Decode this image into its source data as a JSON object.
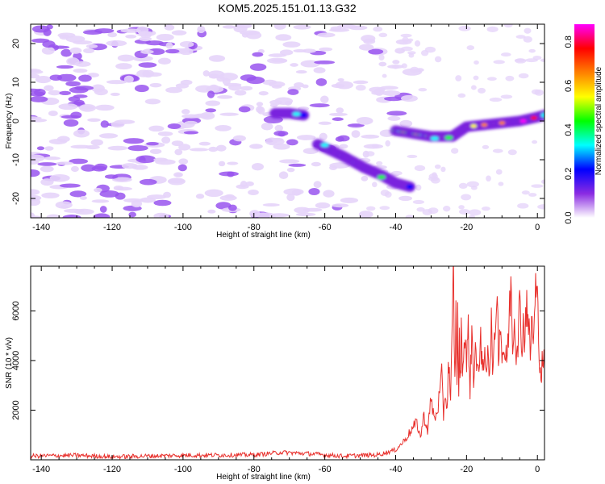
{
  "title": "KOM5.2025.151.01.13.G32",
  "colors": {
    "snr_line": "#e8302c",
    "axis": "#000000",
    "blob_base": "#9955ee",
    "blob_light": "#e6d4fa"
  },
  "colorbar": {
    "label": "Normalized spectral amplitude",
    "ticks": [
      "0.0",
      "0.2",
      "0.4",
      "0.6",
      "0.8"
    ],
    "tick_values": [
      0.0,
      0.2,
      0.4,
      0.6,
      0.8
    ],
    "range": [
      0.0,
      0.88
    ],
    "stops": [
      "#ffffff",
      "#8a2be2",
      "#0000ff",
      "#00ffff",
      "#00ff00",
      "#ffff00",
      "#ff8000",
      "#ff0000",
      "#ff00ff"
    ]
  },
  "chart_data": [
    {
      "type": "heatmap",
      "title": "KOM5.2025.151.01.13.G32",
      "xlabel": "Height of straight line (km)",
      "ylabel": "Frequency (Hz)",
      "xlim": [
        -143,
        2
      ],
      "ylim": [
        -25,
        25
      ],
      "xticks": [
        -140,
        -120,
        -100,
        -80,
        -60,
        -40,
        -20,
        0
      ],
      "xtick_labels": [
        "-140",
        "-120",
        "-100",
        "-80",
        "-60",
        "-40",
        "-20",
        "0"
      ],
      "yticks": [
        -20,
        -10,
        0,
        10,
        20
      ],
      "ytick_labels": [
        "-20",
        "-10",
        "0",
        "10",
        "20"
      ],
      "grid": false,
      "ridges": [
        {
          "x": [
            -74,
            -70,
            -66
          ],
          "y": [
            2,
            2,
            1.5
          ],
          "amplitude": 0.35
        },
        {
          "x": [
            -62,
            -55,
            -49,
            -44,
            -40,
            -36
          ],
          "y": [
            -6,
            -9,
            -12,
            -14,
            -16,
            -17
          ],
          "amplitude": 0.4
        },
        {
          "x": [
            -40,
            -30,
            -24,
            -20,
            -15,
            -10,
            -5,
            0,
            2
          ],
          "y": [
            -2.5,
            -4,
            -4,
            -1.5,
            -1,
            -0.5,
            0,
            1,
            1.5
          ],
          "amplitude": 0.88
        }
      ]
    },
    {
      "type": "line",
      "xlabel": "Height of straight line (km)",
      "ylabel": "SNR (10 * v/v)",
      "xlim": [
        -143,
        2
      ],
      "ylim": [
        0,
        7800
      ],
      "xticks": [
        -140,
        -120,
        -100,
        -80,
        -60,
        -40,
        -20,
        0
      ],
      "xtick_labels": [
        "-140",
        "-120",
        "-100",
        "-80",
        "-60",
        "-40",
        "-20",
        "0"
      ],
      "yticks": [
        2000,
        4000,
        6000
      ],
      "ytick_labels": [
        "2000",
        "4000",
        "6000"
      ],
      "grid": false,
      "series": [
        {
          "x": [
            -143,
            -130,
            -120,
            -100,
            -80,
            -72,
            -65,
            -55,
            -45,
            -40,
            -38,
            -36,
            -34,
            -33,
            -32,
            -31,
            -30,
            -29,
            -28,
            -27,
            -26.5,
            -26,
            -25.5,
            -25,
            -24.5,
            -24,
            -23.7,
            -23.3,
            -23,
            -22.7,
            -22.5,
            -22.2,
            -22,
            -21.7,
            -21.5,
            -21,
            -20.5,
            -20,
            -19.5,
            -19,
            -18.5,
            -18,
            -17.5,
            -17,
            -16.5,
            -16,
            -15.5,
            -15,
            -14.5,
            -14,
            -13.5,
            -13,
            -12.5,
            -12,
            -11.5,
            -11,
            -10.5,
            -10,
            -9.5,
            -9,
            -8.5,
            -8,
            -7.5,
            -7,
            -6.5,
            -6,
            -5.5,
            -5,
            -4.5,
            -4,
            -3.5,
            -3,
            -2.5,
            -2,
            -1.5,
            -1,
            -0.5,
            0,
            0.5,
            1,
            1.5,
            2
          ],
          "y": [
            150,
            180,
            120,
            180,
            200,
            300,
            250,
            150,
            200,
            400,
            700,
            1100,
            1500,
            900,
            1800,
            1200,
            2400,
            1600,
            2200,
            3300,
            1800,
            2800,
            2000,
            4200,
            2200,
            5200,
            7700,
            3000,
            5800,
            3400,
            5600,
            2800,
            4600,
            3200,
            5000,
            3600,
            5400,
            3800,
            5200,
            2900,
            5100,
            3400,
            4500,
            3300,
            4000,
            5300,
            3100,
            4200,
            3400,
            4800,
            3600,
            5400,
            3500,
            4800,
            7200,
            4500,
            5600,
            4200,
            4600,
            3800,
            4400,
            5400,
            7300,
            4900,
            5600,
            4600,
            5000,
            6200,
            4700,
            5500,
            4900,
            6800,
            5200,
            4400,
            5600,
            4800,
            7000,
            6200,
            4700,
            3300,
            4100,
            3700
          ]
        }
      ]
    }
  ]
}
